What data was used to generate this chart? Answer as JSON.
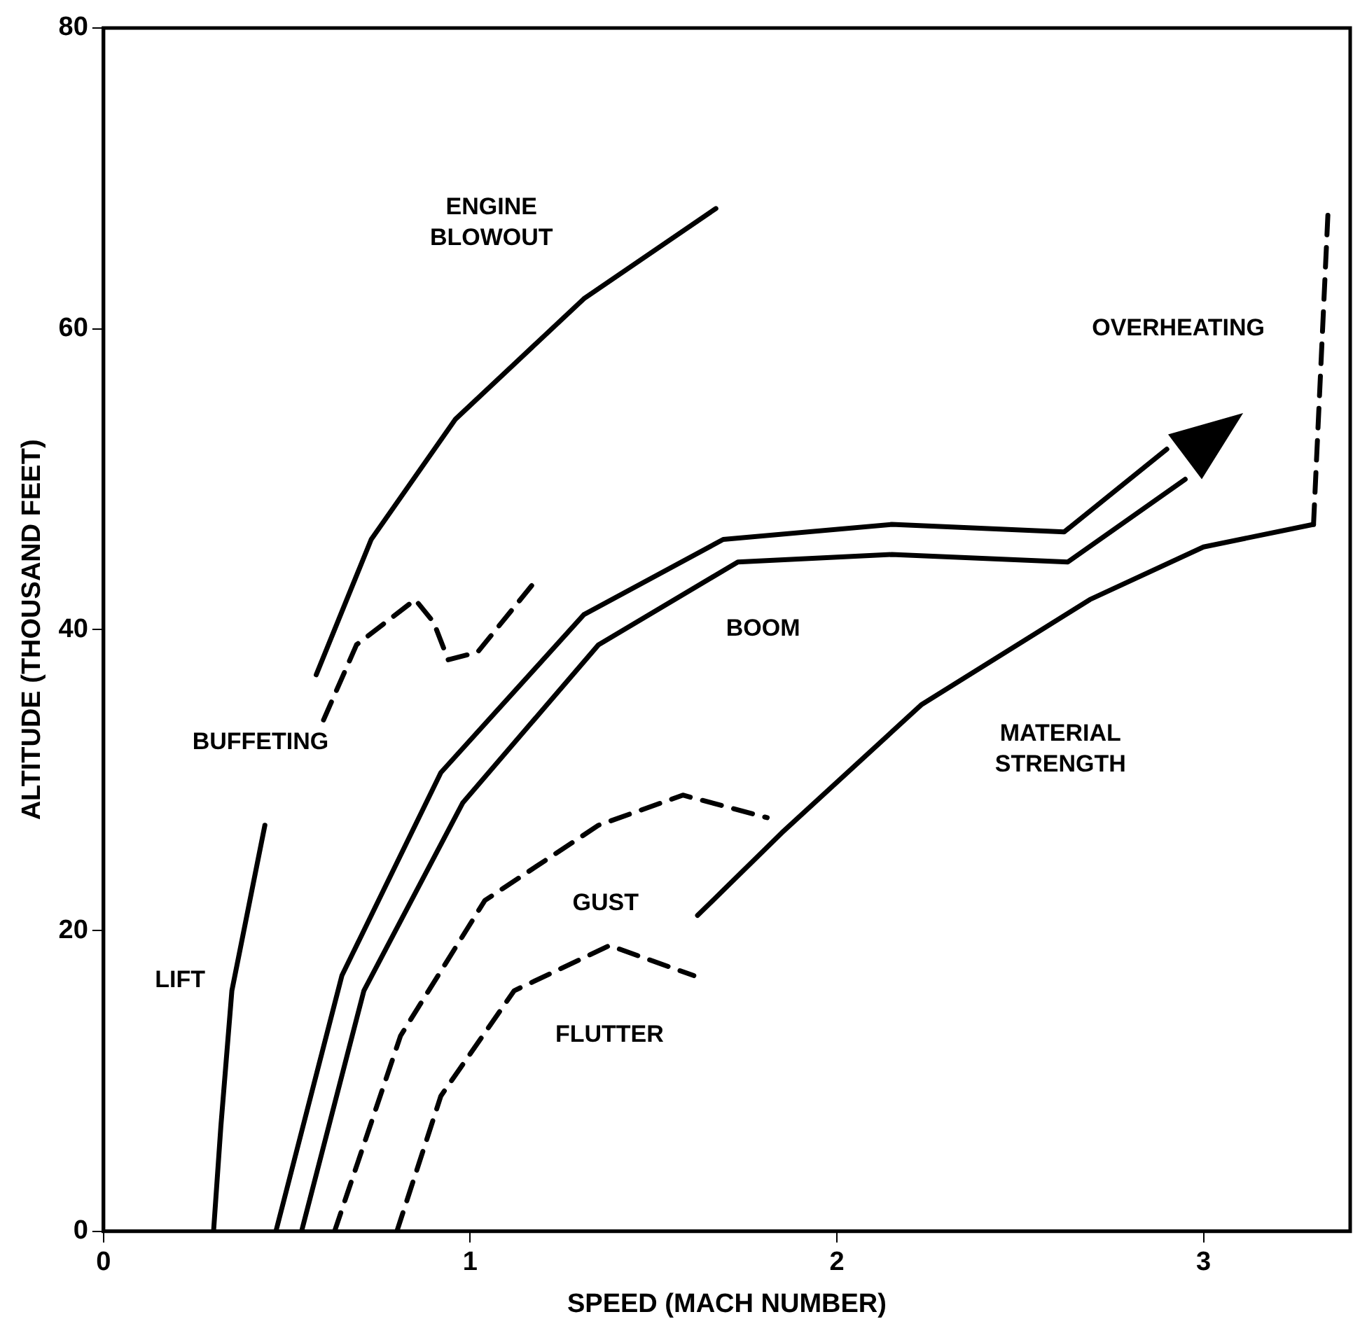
{
  "chart_data": {
    "type": "line",
    "xlabel": "SPEED (MACH NUMBER)",
    "ylabel": "ALTITUDE (THOUSAND FEET)",
    "xlim": [
      0,
      3.4
    ],
    "ylim": [
      0,
      80
    ],
    "xticks": [
      0,
      1,
      2,
      3
    ],
    "yticks": [
      0,
      20,
      40,
      60,
      80
    ],
    "grid": false,
    "legend": false,
    "series": [
      {
        "name": "LIFT",
        "color": "#000000",
        "line_style": "solid",
        "x": [
          0.3,
          0.32,
          0.35,
          0.44
        ],
        "values": [
          0,
          7,
          16,
          27
        ]
      },
      {
        "name": "ENGINE BLOWOUT",
        "color": "#000000",
        "line_style": "solid",
        "x": [
          0.58,
          0.73,
          0.96,
          1.31,
          1.67
        ],
        "values": [
          37,
          46,
          54,
          62,
          68
        ]
      },
      {
        "name": "BUFFETING",
        "color": "#000000",
        "line_style": "dashed",
        "x": [
          0.6,
          0.69,
          0.85,
          0.9,
          0.94,
          1.02,
          1.17
        ],
        "values": [
          34,
          39,
          42,
          40.5,
          38,
          38.5,
          43
        ]
      },
      {
        "color": "#000000",
        "line_style": "solid",
        "x": [
          0.47,
          0.65,
          0.92,
          1.31,
          1.69,
          2.15,
          2.62,
          2.9
        ],
        "values": [
          0,
          17,
          30.5,
          41,
          46,
          47,
          46.5,
          52
        ]
      },
      {
        "name": "BOOM",
        "color": "#000000",
        "line_style": "solid",
        "x": [
          0.54,
          0.71,
          0.98,
          1.35,
          1.73,
          2.15,
          2.63,
          2.95
        ],
        "values": [
          0,
          16,
          28.5,
          39,
          44.5,
          45,
          44.5,
          50
        ]
      },
      {
        "name": "GUST",
        "color": "#000000",
        "line_style": "dashed",
        "x": [
          0.63,
          0.81,
          1.04,
          1.35,
          1.58,
          1.81
        ],
        "values": [
          0,
          13,
          22,
          27,
          29,
          27.5
        ]
      },
      {
        "name": "FLUTTER",
        "color": "#000000",
        "line_style": "dashed",
        "x": [
          0.8,
          0.92,
          1.12,
          1.38,
          1.61
        ],
        "values": [
          0,
          9,
          16,
          19,
          17
        ]
      },
      {
        "name": "MATERIAL STRENGTH",
        "color": "#000000",
        "line_style": "solid",
        "x": [
          1.62,
          1.85,
          2.23,
          2.69,
          3.0,
          3.3
        ],
        "values": [
          21,
          26.5,
          35,
          42,
          45.5,
          47
        ]
      },
      {
        "name": "OVERHEATING",
        "color": "#000000",
        "line_style": "dashed",
        "x": [
          3.3,
          3.34
        ],
        "values": [
          47,
          68
        ]
      }
    ]
  }
}
